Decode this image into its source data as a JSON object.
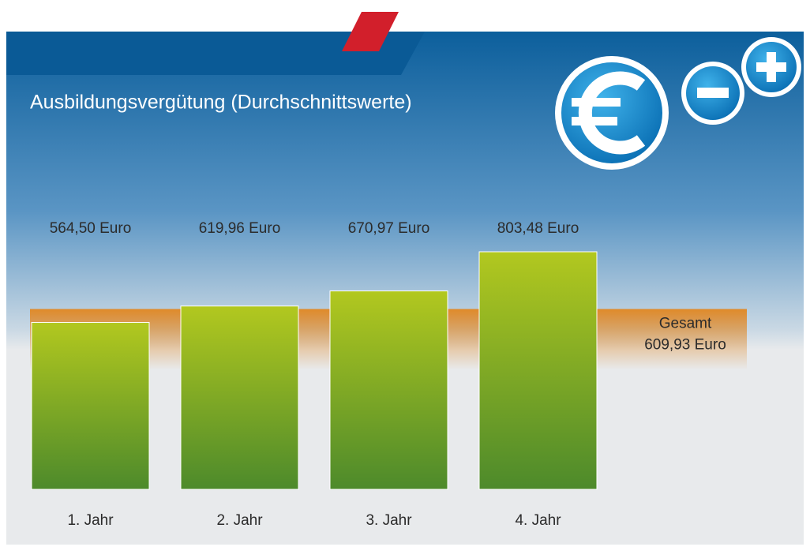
{
  "chart_data": {
    "type": "bar",
    "title": "Ausbildungsvergütung (Durchschnittswerte)",
    "categories": [
      "1. Jahr",
      "2. Jahr",
      "3. Jahr",
      "4. Jahr"
    ],
    "values": [
      564.5,
      619.96,
      670.97,
      803.48
    ],
    "value_labels": [
      "564,50 Euro",
      "619,96 Euro",
      "670,97 Euro",
      "803,48 Euro"
    ],
    "color": "#9cbc22",
    "reference": {
      "name": "Gesamt",
      "value": 609.93,
      "value_label": "609,93 Euro",
      "color": "#e08a2a"
    }
  }
}
